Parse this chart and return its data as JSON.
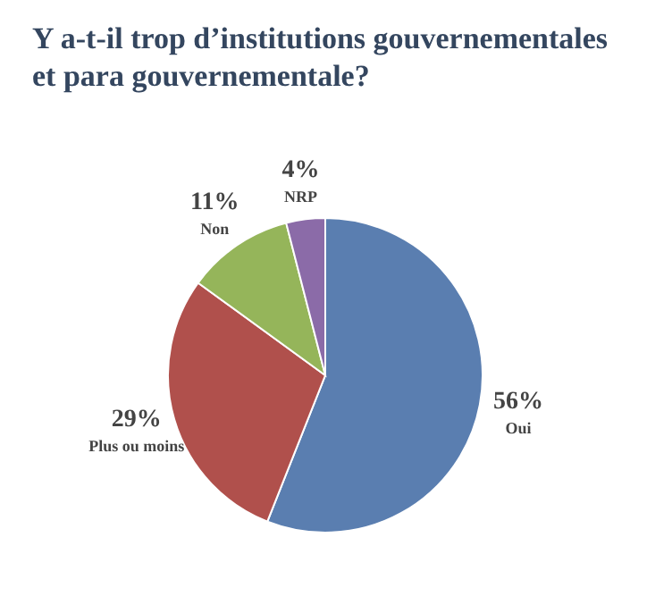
{
  "chart_data": {
    "type": "pie",
    "title": "Y a-t-il trop d’institutions gouvernementales et para gouvernementale?",
    "categories": [
      "Oui",
      "Plus ou moins",
      "Non",
      "NRP"
    ],
    "values": [
      56,
      29,
      11,
      4
    ],
    "colors": [
      "#5a7eb0",
      "#b0504c",
      "#95b55a",
      "#8b6ba8"
    ],
    "value_labels": [
      "56%",
      "29%",
      "11%",
      "4%"
    ]
  }
}
